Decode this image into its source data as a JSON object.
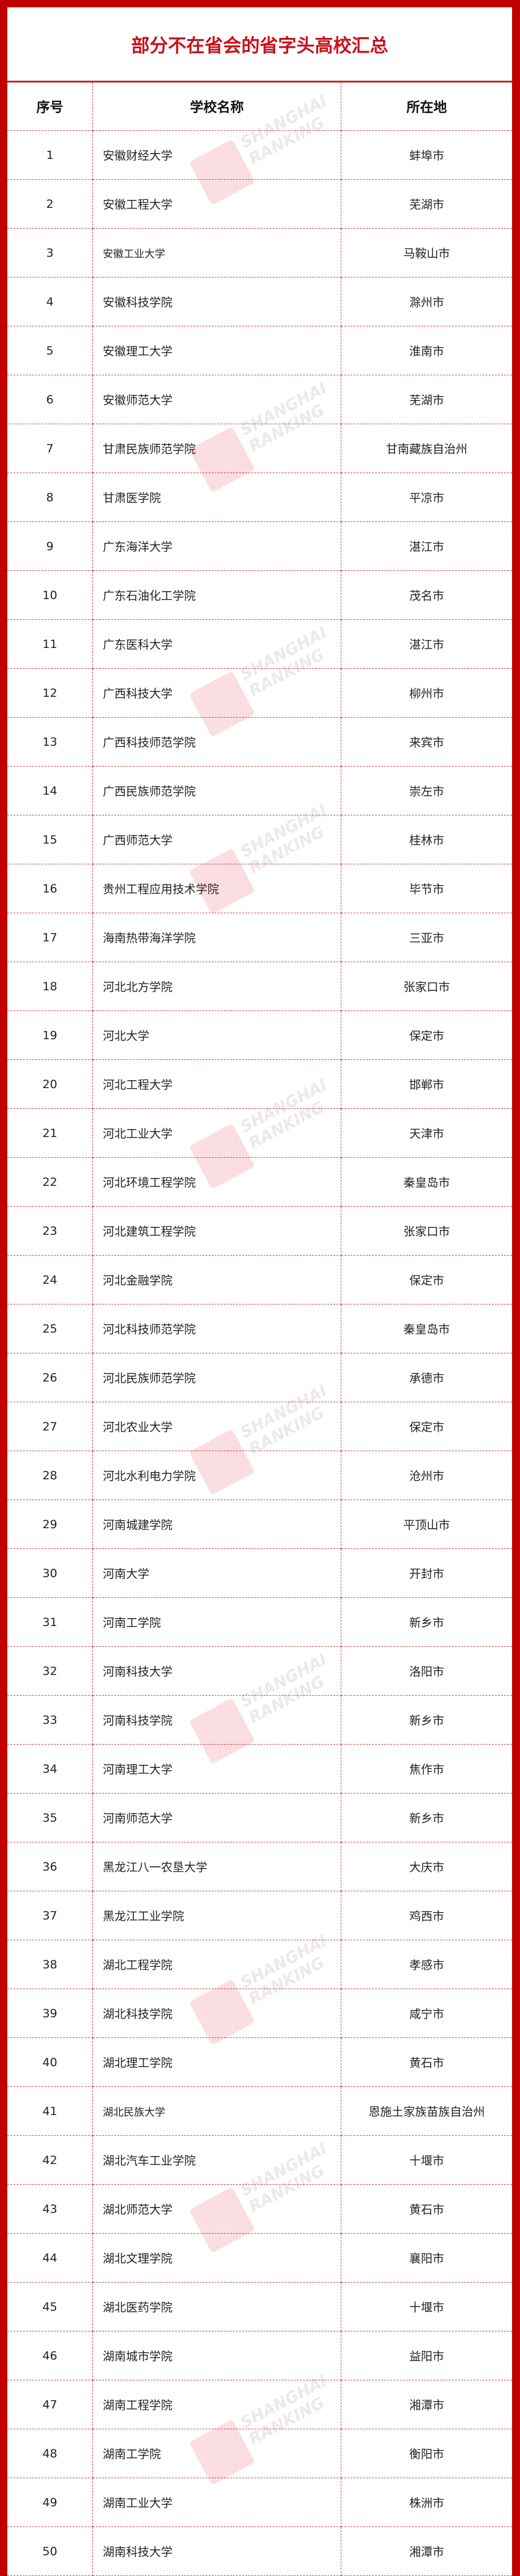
{
  "title": "部分不在省会的省字头高校汇总",
  "columns": [
    "序号",
    "学校名称",
    "所在地"
  ],
  "watermark": "SHANGHAI RANKING 软科",
  "colors": {
    "frame": "#c00000",
    "title": "#c8101a",
    "grid": "#c84a4a"
  },
  "rows": [
    {
      "no": "1",
      "name": "安徽财经大学",
      "city": "蚌埠市"
    },
    {
      "no": "2",
      "name": "安徽工程大学",
      "city": "芜湖市"
    },
    {
      "no": "3",
      "name": "安徽工业大学",
      "city": "马鞍山市"
    },
    {
      "no": "4",
      "name": "安徽科技学院",
      "city": "滁州市"
    },
    {
      "no": "5",
      "name": "安徽理工大学",
      "city": "淮南市"
    },
    {
      "no": "6",
      "name": "安徽师范大学",
      "city": "芜湖市"
    },
    {
      "no": "7",
      "name": "甘肃民族师范学院",
      "city": "甘南藏族自治州"
    },
    {
      "no": "8",
      "name": "甘肃医学院",
      "city": "平凉市"
    },
    {
      "no": "9",
      "name": "广东海洋大学",
      "city": "湛江市"
    },
    {
      "no": "10",
      "name": "广东石油化工学院",
      "city": "茂名市"
    },
    {
      "no": "11",
      "name": "广东医科大学",
      "city": "湛江市"
    },
    {
      "no": "12",
      "name": "广西科技大学",
      "city": "柳州市"
    },
    {
      "no": "13",
      "name": "广西科技师范学院",
      "city": "来宾市"
    },
    {
      "no": "14",
      "name": "广西民族师范学院",
      "city": "崇左市"
    },
    {
      "no": "15",
      "name": "广西师范大学",
      "city": "桂林市"
    },
    {
      "no": "16",
      "name": "贵州工程应用技术学院",
      "city": "毕节市"
    },
    {
      "no": "17",
      "name": "海南热带海洋学院",
      "city": "三亚市"
    },
    {
      "no": "18",
      "name": "河北北方学院",
      "city": "张家口市"
    },
    {
      "no": "19",
      "name": "河北大学",
      "city": "保定市"
    },
    {
      "no": "20",
      "name": "河北工程大学",
      "city": "邯郸市"
    },
    {
      "no": "21",
      "name": "河北工业大学",
      "city": "天津市"
    },
    {
      "no": "22",
      "name": "河北环境工程学院",
      "city": "秦皇岛市"
    },
    {
      "no": "23",
      "name": "河北建筑工程学院",
      "city": "张家口市"
    },
    {
      "no": "24",
      "name": "河北金融学院",
      "city": "保定市"
    },
    {
      "no": "25",
      "name": "河北科技师范学院",
      "city": "秦皇岛市"
    },
    {
      "no": "26",
      "name": "河北民族师范学院",
      "city": "承德市"
    },
    {
      "no": "27",
      "name": "河北农业大学",
      "city": "保定市"
    },
    {
      "no": "28",
      "name": "河北水利电力学院",
      "city": "沧州市"
    },
    {
      "no": "29",
      "name": "河南城建学院",
      "city": "平顶山市"
    },
    {
      "no": "30",
      "name": "河南大学",
      "city": "开封市"
    },
    {
      "no": "31",
      "name": "河南工学院",
      "city": "新乡市"
    },
    {
      "no": "32",
      "name": "河南科技大学",
      "city": "洛阳市"
    },
    {
      "no": "33",
      "name": "河南科技学院",
      "city": "新乡市"
    },
    {
      "no": "34",
      "name": "河南理工大学",
      "city": "焦作市"
    },
    {
      "no": "35",
      "name": "河南师范大学",
      "city": "新乡市"
    },
    {
      "no": "36",
      "name": "黑龙江八一农垦大学",
      "city": "大庆市"
    },
    {
      "no": "37",
      "name": "黑龙江工业学院",
      "city": "鸡西市"
    },
    {
      "no": "38",
      "name": "湖北工程学院",
      "city": "孝感市"
    },
    {
      "no": "39",
      "name": "湖北科技学院",
      "city": "咸宁市"
    },
    {
      "no": "40",
      "name": "湖北理工学院",
      "city": "黄石市"
    },
    {
      "no": "41",
      "name": "湖北民族大学",
      "city": "恩施土家族苗族自治州"
    },
    {
      "no": "42",
      "name": "湖北汽车工业学院",
      "city": "十堰市"
    },
    {
      "no": "43",
      "name": "湖北师范大学",
      "city": "黄石市"
    },
    {
      "no": "44",
      "name": "湖北文理学院",
      "city": "襄阳市"
    },
    {
      "no": "45",
      "name": "湖北医药学院",
      "city": "十堰市"
    },
    {
      "no": "46",
      "name": "湖南城市学院",
      "city": "益阳市"
    },
    {
      "no": "47",
      "name": "湖南工程学院",
      "city": "湘潭市"
    },
    {
      "no": "48",
      "name": "湖南工学院",
      "city": "衡阳市"
    },
    {
      "no": "49",
      "name": "湖南工业大学",
      "city": "株洲市"
    },
    {
      "no": "50",
      "name": "湖南科技大学",
      "city": "湘潭市"
    }
  ]
}
